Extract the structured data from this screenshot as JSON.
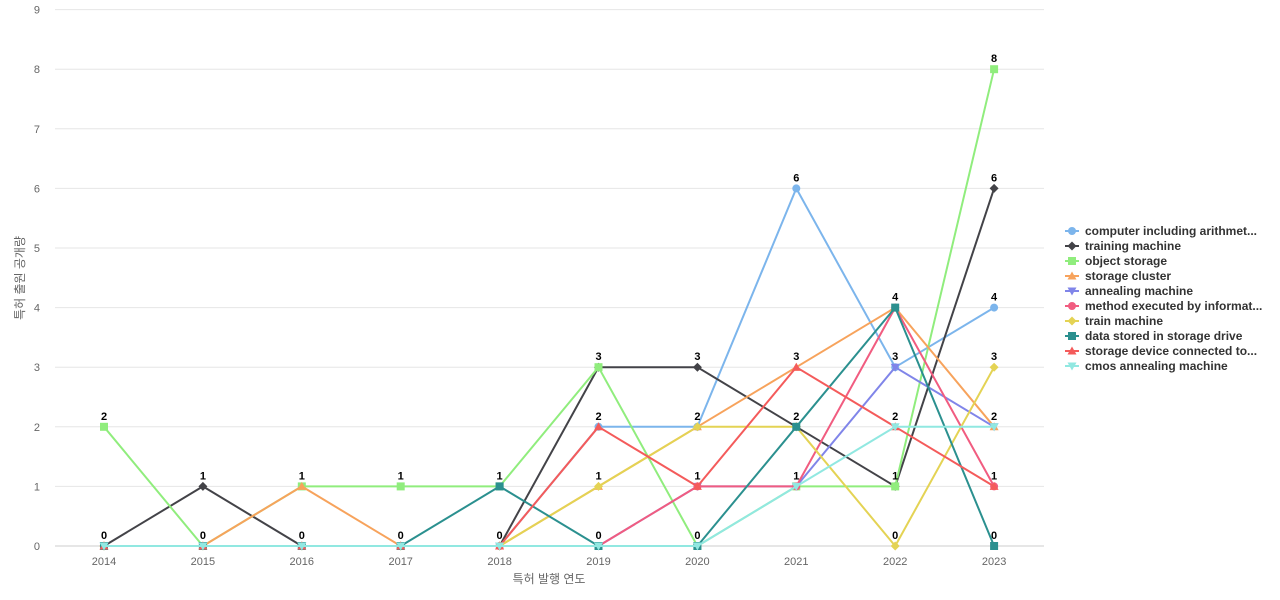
{
  "chart_data": {
    "type": "line",
    "title": "",
    "xlabel": "특허 발행 연도",
    "ylabel": "특허 출원 공개량",
    "x": [
      "2014",
      "2015",
      "2016",
      "2017",
      "2018",
      "2019",
      "2020",
      "2021",
      "2022",
      "2023"
    ],
    "ylim": [
      0,
      9
    ],
    "yticks": [
      "0",
      "1",
      "2",
      "3",
      "4",
      "5",
      "6",
      "7",
      "8",
      "9"
    ],
    "grid": true,
    "legend_position": "right",
    "series": [
      {
        "name": "computer including arithmet...",
        "color": "#7cb5ec",
        "marker": "circle",
        "values": [
          0,
          0,
          0,
          0,
          0,
          2,
          2,
          6,
          3,
          4
        ]
      },
      {
        "name": "training machine",
        "color": "#434348",
        "marker": "diamond",
        "values": [
          0,
          1,
          0,
          0,
          0,
          3,
          3,
          2,
          1,
          6
        ]
      },
      {
        "name": "object storage",
        "color": "#90ed7d",
        "marker": "square",
        "values": [
          2,
          0,
          1,
          1,
          1,
          3,
          0,
          1,
          1,
          8
        ]
      },
      {
        "name": "storage cluster",
        "color": "#f7a35c",
        "marker": "triangle",
        "values": [
          0,
          0,
          1,
          0,
          0,
          1,
          2,
          3,
          4,
          2
        ]
      },
      {
        "name": "annealing machine",
        "color": "#8085e9",
        "marker": "triangle-down",
        "values": [
          0,
          0,
          0,
          0,
          0,
          0,
          1,
          1,
          3,
          2
        ]
      },
      {
        "name": "method executed by informat...",
        "color": "#f15c80",
        "marker": "circle",
        "values": [
          0,
          0,
          0,
          0,
          0,
          0,
          1,
          1,
          4,
          1
        ]
      },
      {
        "name": "train machine",
        "color": "#e4d354",
        "marker": "diamond",
        "values": [
          0,
          0,
          0,
          0,
          0,
          1,
          2,
          2,
          0,
          3
        ]
      },
      {
        "name": "data stored in storage drive",
        "color": "#2b908f",
        "marker": "square",
        "values": [
          0,
          0,
          0,
          0,
          1,
          0,
          0,
          2,
          4,
          0
        ]
      },
      {
        "name": "storage device connected to...",
        "color": "#f45b5b",
        "marker": "triangle",
        "values": [
          0,
          0,
          0,
          0,
          0,
          2,
          1,
          3,
          2,
          1
        ]
      },
      {
        "name": "cmos annealing machine",
        "color": "#91e8e1",
        "marker": "triangle-down",
        "values": [
          0,
          0,
          0,
          0,
          0,
          0,
          0,
          1,
          2,
          2
        ]
      }
    ],
    "data_labels": [
      {
        "x": "2014",
        "y": 2,
        "text": "2"
      },
      {
        "x": "2014",
        "y": 0,
        "text": "0"
      },
      {
        "x": "2015",
        "y": 1,
        "text": "1"
      },
      {
        "x": "2015",
        "y": 0,
        "text": "0"
      },
      {
        "x": "2016",
        "y": 1,
        "text": "1"
      },
      {
        "x": "2016",
        "y": 0,
        "text": "0"
      },
      {
        "x": "2017",
        "y": 1,
        "text": "1"
      },
      {
        "x": "2017",
        "y": 0,
        "text": "0"
      },
      {
        "x": "2018",
        "y": 1,
        "text": "1"
      },
      {
        "x": "2018",
        "y": 0,
        "text": "0"
      },
      {
        "x": "2019",
        "y": 3,
        "text": "3"
      },
      {
        "x": "2019",
        "y": 2,
        "text": "2"
      },
      {
        "x": "2019",
        "y": 1,
        "text": "1"
      },
      {
        "x": "2019",
        "y": 0,
        "text": "0"
      },
      {
        "x": "2020",
        "y": 3,
        "text": "3"
      },
      {
        "x": "2020",
        "y": 2,
        "text": "2"
      },
      {
        "x": "2020",
        "y": 1,
        "text": "1"
      },
      {
        "x": "2020",
        "y": 0,
        "text": "0"
      },
      {
        "x": "2021",
        "y": 6,
        "text": "6"
      },
      {
        "x": "2021",
        "y": 3,
        "text": "3"
      },
      {
        "x": "2021",
        "y": 2,
        "text": "2"
      },
      {
        "x": "2021",
        "y": 1,
        "text": "1"
      },
      {
        "x": "2022",
        "y": 4,
        "text": "4"
      },
      {
        "x": "2022",
        "y": 3,
        "text": "3"
      },
      {
        "x": "2022",
        "y": 2,
        "text": "2"
      },
      {
        "x": "2022",
        "y": 1,
        "text": "1"
      },
      {
        "x": "2022",
        "y": 0,
        "text": "0"
      },
      {
        "x": "2023",
        "y": 8,
        "text": "8"
      },
      {
        "x": "2023",
        "y": 6,
        "text": "6"
      },
      {
        "x": "2023",
        "y": 4,
        "text": "4"
      },
      {
        "x": "2023",
        "y": 3,
        "text": "3"
      },
      {
        "x": "2023",
        "y": 2,
        "text": "2"
      },
      {
        "x": "2023",
        "y": 1,
        "text": "1"
      },
      {
        "x": "2023",
        "y": 0,
        "text": "0"
      }
    ]
  }
}
